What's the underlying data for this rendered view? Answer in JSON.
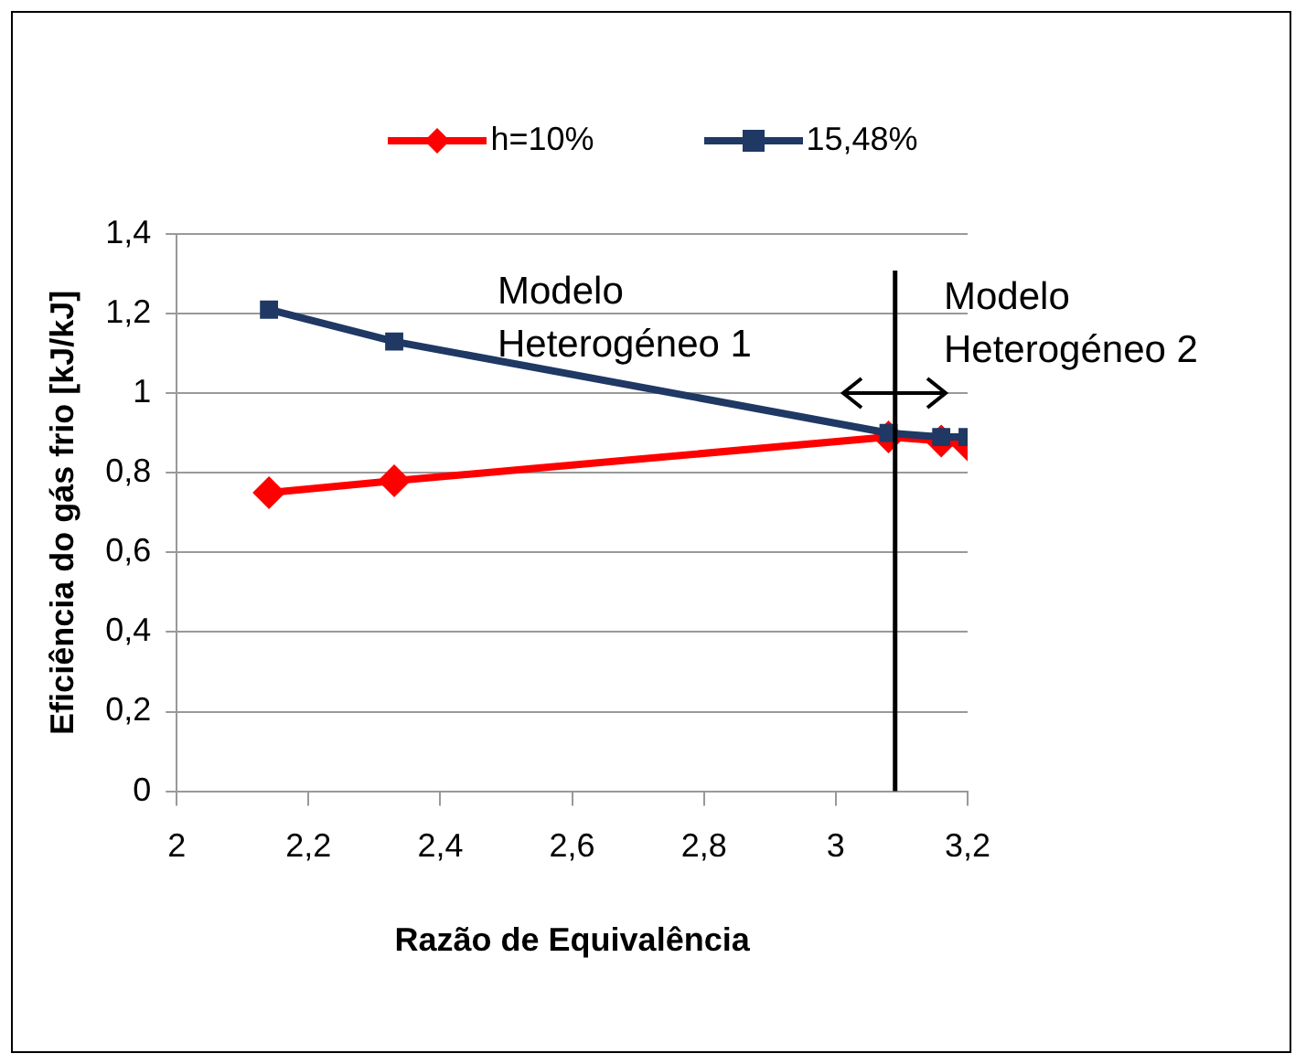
{
  "chart_data": {
    "type": "line",
    "xlabel": "Razão de Equivalência",
    "ylabel": "Eficiência do gás frio [kJ/kJ]",
    "x": [
      2.14,
      2.33,
      3.08,
      3.16,
      3.2
    ],
    "series": [
      {
        "name": "h=10%",
        "color": "#ff0000",
        "marker": "diamond",
        "values": [
          0.75,
          0.78,
          0.89,
          0.88,
          0.87
        ]
      },
      {
        "name": "15,48%",
        "color": "#1f3864",
        "marker": "square",
        "values": [
          1.21,
          1.13,
          0.9,
          0.89,
          0.89
        ]
      }
    ],
    "xlim": [
      2,
      3.2
    ],
    "xticks": [
      {
        "value": 2,
        "label": "2"
      },
      {
        "value": 2.2,
        "label": "2,2"
      },
      {
        "value": 2.4,
        "label": "2,4"
      },
      {
        "value": 2.6,
        "label": "2,6"
      },
      {
        "value": 2.8,
        "label": "2,8"
      },
      {
        "value": 3,
        "label": "3"
      },
      {
        "value": 3.2,
        "label": "3,2"
      }
    ],
    "ylim": [
      0,
      1.4
    ],
    "yticks": [
      {
        "value": 0,
        "label": "0"
      },
      {
        "value": 0.2,
        "label": "0,2"
      },
      {
        "value": 0.4,
        "label": "0,4"
      },
      {
        "value": 0.6,
        "label": "0,6"
      },
      {
        "value": 0.8,
        "label": "0,8"
      },
      {
        "value": 1,
        "label": "1"
      },
      {
        "value": 1.2,
        "label": "1,2"
      },
      {
        "value": 1.4,
        "label": "1,4"
      }
    ],
    "grid": "y",
    "legend": "top",
    "line_style": "solid",
    "ref_lines": [
      {
        "axis": "x",
        "value": 3.09,
        "color": "#000000"
      }
    ],
    "annotations": [
      "Modelo Heterogéneo 1",
      "Modelo Heterogéneo 2"
    ]
  }
}
